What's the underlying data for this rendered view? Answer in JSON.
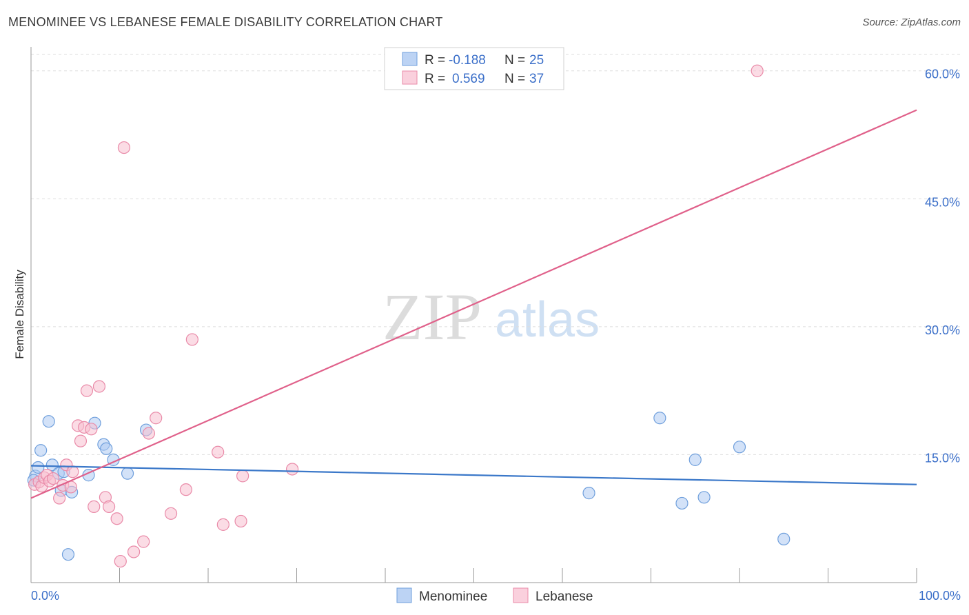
{
  "title": "MENOMINEE VS LEBANESE FEMALE DISABILITY CORRELATION CHART",
  "source": "Source: ZipAtlas.com",
  "watermark": {
    "zip": "ZIP",
    "atlas": "atlas"
  },
  "colors": {
    "menominee_fill": "#aecbf2",
    "menominee_stroke": "#6f9fdc",
    "menominee_line": "#3b78c9",
    "lebanese_fill": "#f7bfd0",
    "lebanese_stroke": "#e98aa8",
    "lebanese_line": "#e0608a"
  },
  "legend": {
    "r_label": "R =",
    "n_label": "N =",
    "menominee": {
      "r": "-0.188",
      "n": "25"
    },
    "lebanese": {
      "r": "0.569",
      "n": "37"
    }
  },
  "chart_data": {
    "type": "scatter",
    "title": "MENOMINEE VS LEBANESE FEMALE DISABILITY CORRELATION CHART",
    "xlabel": "",
    "ylabel": "Female Disability",
    "xlim": [
      0,
      100
    ],
    "ylim": [
      0,
      62
    ],
    "x_tick_labels": [
      "0.0%",
      "100.0%"
    ],
    "y_ticks": [
      {
        "value": 15,
        "label": "15.0%"
      },
      {
        "value": 30,
        "label": "30.0%"
      },
      {
        "value": 45,
        "label": "45.0%"
      },
      {
        "value": 60,
        "label": "60.0%"
      }
    ],
    "series": [
      {
        "name": "Menominee",
        "points": [
          [
            0.5,
            12.5
          ],
          [
            0.8,
            13.5
          ],
          [
            1.1,
            15.5
          ],
          [
            2.0,
            18.9
          ],
          [
            2.4,
            13.8
          ],
          [
            3.1,
            12.8
          ],
          [
            3.4,
            10.8
          ],
          [
            3.7,
            13.0
          ],
          [
            4.2,
            3.3
          ],
          [
            4.6,
            10.6
          ],
          [
            6.5,
            12.6
          ],
          [
            7.2,
            18.7
          ],
          [
            8.2,
            16.2
          ],
          [
            8.5,
            15.7
          ],
          [
            9.3,
            14.4
          ],
          [
            10.9,
            12.8
          ],
          [
            13.0,
            17.9
          ],
          [
            63.0,
            10.5
          ],
          [
            71.0,
            19.3
          ],
          [
            73.5,
            9.3
          ],
          [
            75.0,
            14.4
          ],
          [
            76.0,
            10.0
          ],
          [
            80.0,
            15.9
          ],
          [
            85.0,
            5.1
          ],
          [
            0.3,
            12.0
          ]
        ],
        "trend": {
          "x": [
            0,
            100
          ],
          "y": [
            13.7,
            11.5
          ]
        }
      },
      {
        "name": "Lebanese",
        "points": [
          [
            0.4,
            11.5
          ],
          [
            0.9,
            11.8
          ],
          [
            1.2,
            11.3
          ],
          [
            1.5,
            12.3
          ],
          [
            1.8,
            12.6
          ],
          [
            2.1,
            11.9
          ],
          [
            2.5,
            12.2
          ],
          [
            3.2,
            9.9
          ],
          [
            3.6,
            11.4
          ],
          [
            4.0,
            13.8
          ],
          [
            4.5,
            11.2
          ],
          [
            4.7,
            13.0
          ],
          [
            5.3,
            18.4
          ],
          [
            5.6,
            16.6
          ],
          [
            6.0,
            18.2
          ],
          [
            6.3,
            22.5
          ],
          [
            6.8,
            18.0
          ],
          [
            7.1,
            8.9
          ],
          [
            7.7,
            23.0
          ],
          [
            8.4,
            10.0
          ],
          [
            8.8,
            8.9
          ],
          [
            9.7,
            7.5
          ],
          [
            10.1,
            2.5
          ],
          [
            10.5,
            51.0
          ],
          [
            11.6,
            3.6
          ],
          [
            12.7,
            4.8
          ],
          [
            13.3,
            17.5
          ],
          [
            14.1,
            19.3
          ],
          [
            15.8,
            8.1
          ],
          [
            17.5,
            10.9
          ],
          [
            18.2,
            28.5
          ],
          [
            21.1,
            15.3
          ],
          [
            21.7,
            6.8
          ],
          [
            23.7,
            7.2
          ],
          [
            23.9,
            12.5
          ],
          [
            29.5,
            13.3
          ],
          [
            82.0,
            60.0
          ]
        ],
        "trend": {
          "x": [
            0,
            100
          ],
          "y": [
            9.9,
            55.4
          ]
        }
      }
    ],
    "legend": [
      "Menominee",
      "Lebanese"
    ],
    "grid": true
  }
}
